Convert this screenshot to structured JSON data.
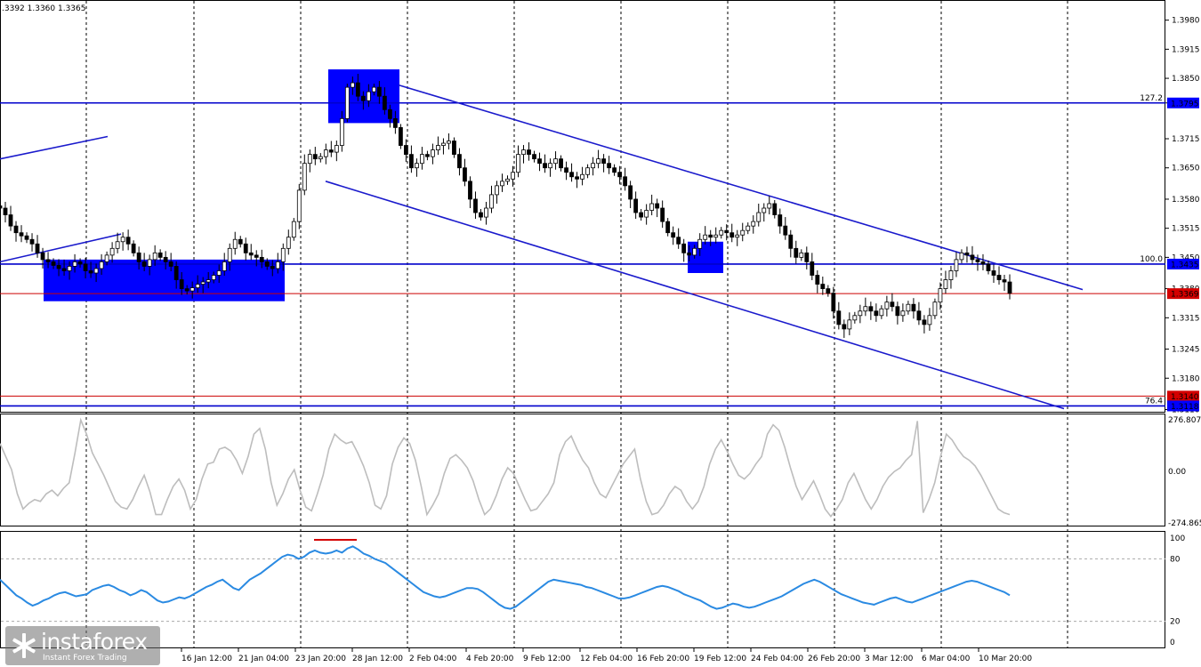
{
  "header": {
    "ohlc_text": ".3392 1.3360 1.3365"
  },
  "colors": {
    "bg": "#ffffff",
    "levels": "#0000cc",
    "channel": "#1a1acc",
    "zone": "#0000ff",
    "current_price_line": "#cc0000",
    "red_tag": "#d40000",
    "blue_tag": "#0000ff",
    "candles": "#000000",
    "cci_line": "#bdbdbd",
    "rsi_line": "#2a8ae2",
    "grid": "#000000"
  },
  "price_panel": {
    "axis_ticks": [
      "1.3980",
      "1.3915",
      "1.3850",
      "1.3795",
      "1.3715",
      "1.3650",
      "1.3580",
      "1.3515",
      "1.3450",
      "1.3380",
      "1.3315",
      "1.3245",
      "1.3180",
      "1.3110"
    ],
    "price_tags": [
      {
        "text": "1.3795",
        "price": 1.3795,
        "color": "blue"
      },
      {
        "text": "1.3435",
        "price": 1.3435,
        "color": "blue"
      },
      {
        "text": "1.3369",
        "price": 1.3369,
        "color": "red"
      },
      {
        "text": "1.3140",
        "price": 1.314,
        "color": "red"
      },
      {
        "text": "1.3118",
        "price": 1.3118,
        "color": "blue"
      }
    ],
    "fib_labels": [
      {
        "text": "127.2",
        "price": 1.3795
      },
      {
        "text": "100.0",
        "price": 1.3435
      },
      {
        "text": "76.4",
        "price": 1.3118
      }
    ]
  },
  "cci_panel": {
    "axis_ticks": [
      "276.8074",
      "0.00",
      "-274.8650"
    ],
    "range": [
      -274.865,
      276.8074
    ]
  },
  "rsi_panel": {
    "axis_ticks": [
      "100",
      "80",
      "20",
      "0"
    ],
    "levels": [
      80,
      20
    ]
  },
  "time_axis": [
    "16 Jan 12:00",
    "21 Jan 04:00",
    "23 Jan 20:00",
    "28 Jan 12:00",
    "2 Feb 04:00",
    "4 Feb 20:00",
    "9 Feb 12:00",
    "12 Feb 04:00",
    "16 Feb 20:00",
    "19 Feb 12:00",
    "24 Feb 04:00",
    "26 Feb 20:00",
    "3 Mar 12:00",
    "6 Mar 04:00",
    "10 Mar 20:00"
  ],
  "logo": {
    "name": "instaforex",
    "tagline": "Instant Forex Trading"
  },
  "chart_data": [
    {
      "type": "candlestick",
      "title": "",
      "ylim": [
        1.3105,
        1.4025
      ],
      "series": [
        {
          "name": "",
          "close_path": [
            1.356,
            1.3545,
            1.352,
            1.3505,
            1.3498,
            1.349,
            1.348,
            1.346,
            1.3445,
            1.344,
            1.3432,
            1.3425,
            1.342,
            1.343,
            1.344,
            1.3435,
            1.342,
            1.3415,
            1.3425,
            1.344,
            1.3455,
            1.347,
            1.3485,
            1.3495,
            1.348,
            1.346,
            1.344,
            1.343,
            1.3445,
            1.346,
            1.345,
            1.344,
            1.343,
            1.34,
            1.338,
            1.3375,
            1.3382,
            1.339,
            1.3395,
            1.34,
            1.341,
            1.342,
            1.344,
            1.347,
            1.349,
            1.348,
            1.346,
            1.3455,
            1.345,
            1.344,
            1.343,
            1.3425,
            1.344,
            1.347,
            1.3495,
            1.353,
            1.36,
            1.366,
            1.368,
            1.367,
            1.3675,
            1.369,
            1.3685,
            1.37,
            1.376,
            1.383,
            1.384,
            1.381,
            1.38,
            1.382,
            1.383,
            1.381,
            1.378,
            1.376,
            1.374,
            1.37,
            1.368,
            1.365,
            1.366,
            1.368,
            1.3675,
            1.369,
            1.37,
            1.3705,
            1.371,
            1.368,
            1.365,
            1.362,
            1.358,
            1.355,
            1.354,
            1.356,
            1.359,
            1.361,
            1.362,
            1.3625,
            1.364,
            1.368,
            1.369,
            1.368,
            1.367,
            1.366,
            1.365,
            1.366,
            1.367,
            1.365,
            1.364,
            1.363,
            1.3625,
            1.3635,
            1.365,
            1.366,
            1.367,
            1.366,
            1.365,
            1.364,
            1.363,
            1.361,
            1.358,
            1.355,
            1.354,
            1.3555,
            1.357,
            1.356,
            1.353,
            1.3505,
            1.3495,
            1.348,
            1.346,
            1.3455,
            1.347,
            1.349,
            1.35,
            1.3495,
            1.35,
            1.351,
            1.3505,
            1.3495,
            1.35,
            1.351,
            1.352,
            1.353,
            1.355,
            1.356,
            1.357,
            1.3545,
            1.352,
            1.35,
            1.347,
            1.345,
            1.346,
            1.344,
            1.341,
            1.339,
            1.338,
            1.337,
            1.333,
            1.33,
            1.329,
            1.331,
            1.332,
            1.333,
            1.334,
            1.333,
            1.332,
            1.3335,
            1.335,
            1.334,
            1.332,
            1.333,
            1.3345,
            1.333,
            1.331,
            1.33,
            1.332,
            1.335,
            1.338,
            1.34,
            1.342,
            1.3445,
            1.346,
            1.3455,
            1.3445,
            1.344,
            1.3435,
            1.342,
            1.341,
            1.34,
            1.3395,
            1.337
          ]
        }
      ],
      "levels": [
        {
          "label": "127.2",
          "price": 1.3795
        },
        {
          "label": "100.0",
          "price": 1.3435
        },
        {
          "label": "76.4",
          "price": 1.3118
        },
        {
          "label": "",
          "price": 1.3369
        },
        {
          "label": "",
          "price": 1.314
        }
      ]
    },
    {
      "type": "line",
      "title": "",
      "ylim": [
        -274.865,
        276.8074
      ],
      "series": [
        {
          "name": "",
          "values": [
            150,
            80,
            10,
            -120,
            -200,
            -170,
            -150,
            -160,
            -120,
            -100,
            -130,
            -90,
            -60,
            100,
            276,
            200,
            100,
            40,
            -20,
            -90,
            -160,
            -190,
            -200,
            -150,
            -80,
            -20,
            -110,
            -230,
            -230,
            -150,
            -80,
            -40,
            -100,
            -200,
            -150,
            -40,
            40,
            50,
            120,
            130,
            110,
            60,
            -10,
            80,
            200,
            230,
            120,
            -60,
            -180,
            -120,
            -40,
            10,
            -100,
            -190,
            -210,
            -120,
            -20,
            120,
            200,
            170,
            150,
            160,
            100,
            30,
            -60,
            -180,
            -200,
            -130,
            40,
            130,
            180,
            150,
            60,
            -80,
            -230,
            -180,
            -120,
            -10,
            70,
            90,
            60,
            20,
            -50,
            -150,
            -230,
            -200,
            -130,
            -40,
            20,
            -10,
            -80,
            -150,
            -210,
            -200,
            -160,
            -120,
            -60,
            90,
            160,
            190,
            120,
            60,
            20,
            -60,
            -120,
            -140,
            -80,
            -20,
            40,
            80,
            120,
            -40,
            -160,
            -230,
            -220,
            -180,
            -120,
            -80,
            -100,
            -160,
            -200,
            -160,
            -80,
            40,
            120,
            170,
            110,
            40,
            -20,
            -40,
            -10,
            40,
            80,
            200,
            250,
            220,
            130,
            20,
            -80,
            -150,
            -100,
            -50,
            -120,
            -200,
            -240,
            -200,
            -150,
            -60,
            -10,
            -80,
            -150,
            -200,
            -150,
            -80,
            -30,
            0,
            20,
            60,
            90,
            270,
            -220,
            -150,
            -60,
            80,
            200,
            170,
            120,
            80,
            60,
            30,
            -20,
            -80,
            -140,
            -200,
            -220,
            -230
          ]
        }
      ]
    },
    {
      "type": "line",
      "title": "",
      "ylim": [
        0,
        100
      ],
      "series": [
        {
          "name": "",
          "values": [
            60,
            55,
            50,
            45,
            42,
            38,
            35,
            37,
            40,
            42,
            45,
            47,
            48,
            46,
            44,
            45,
            46,
            50,
            52,
            54,
            55,
            53,
            50,
            48,
            45,
            47,
            50,
            48,
            44,
            40,
            38,
            39,
            41,
            43,
            42,
            44,
            47,
            50,
            53,
            55,
            58,
            60,
            56,
            52,
            50,
            55,
            60,
            63,
            66,
            70,
            74,
            78,
            82,
            84,
            83,
            80,
            82,
            86,
            88,
            86,
            85,
            86,
            88,
            86,
            90,
            92,
            89,
            85,
            83,
            80,
            78,
            76,
            72,
            68,
            64,
            60,
            56,
            52,
            48,
            46,
            44,
            43,
            44,
            46,
            48,
            50,
            52,
            52,
            51,
            48,
            44,
            40,
            36,
            33,
            32,
            34,
            38,
            42,
            46,
            50,
            54,
            58,
            60,
            59,
            58,
            57,
            56,
            55,
            53,
            52,
            50,
            48,
            46,
            44,
            42,
            42,
            43,
            45,
            47,
            49,
            51,
            53,
            54,
            53,
            51,
            49,
            46,
            44,
            42,
            40,
            37,
            34,
            32,
            33,
            35,
            37,
            36,
            34,
            33,
            34,
            36,
            38,
            40,
            42,
            44,
            47,
            50,
            53,
            56,
            58,
            60,
            58,
            55,
            52,
            49,
            46,
            44,
            42,
            40,
            38,
            37,
            36,
            38,
            40,
            42,
            43,
            41,
            39,
            38,
            40,
            42,
            44,
            46,
            48,
            50,
            52,
            54,
            56,
            58,
            59,
            58,
            56,
            54,
            52,
            50,
            48,
            45
          ]
        }
      ]
    }
  ]
}
